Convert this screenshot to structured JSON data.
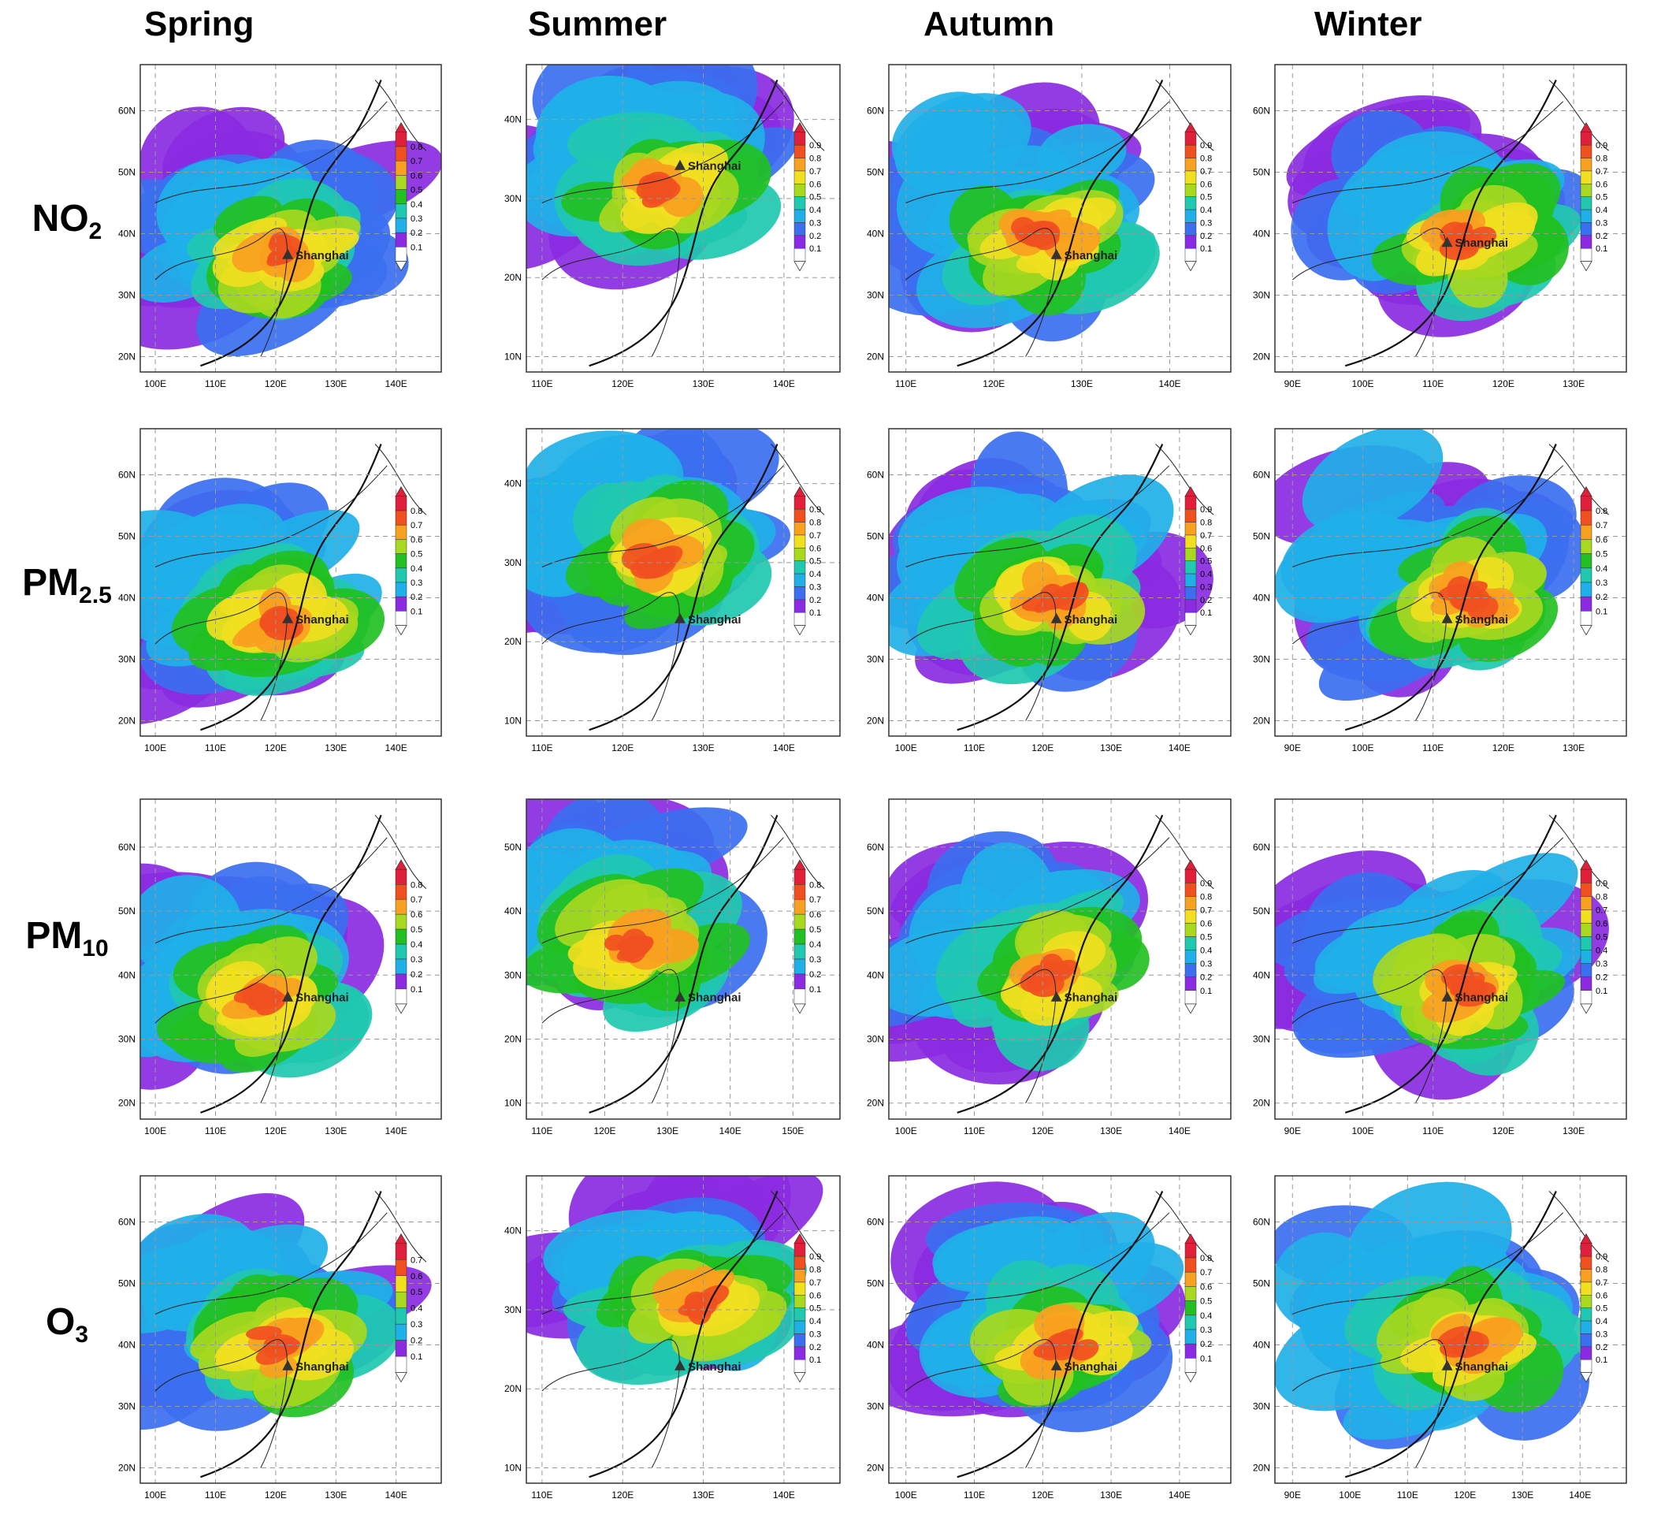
{
  "seasons": [
    "Spring",
    "Summer",
    "Autumn",
    "Winter"
  ],
  "pollutants": [
    {
      "base": "NO",
      "sub": "2"
    },
    {
      "base": "PM",
      "sub": "2.5"
    },
    {
      "base": "PM",
      "sub": "10"
    },
    {
      "base": "O",
      "sub": "3"
    }
  ],
  "site_label": "Shanghai",
  "colorbar_colors": [
    "#ffffff",
    "#8a2be2",
    "#3b6ff0",
    "#1fb0e8",
    "#20c8b0",
    "#22c022",
    "#a8d820",
    "#f0e020",
    "#f8a020",
    "#f05020",
    "#e0203a"
  ],
  "panels": [
    [
      {
        "lon": [
          "100E",
          "110E",
          "120E",
          "130E",
          "140E"
        ],
        "lat": [
          "20N",
          "30N",
          "40N",
          "50N",
          "60N"
        ],
        "cbar": [
          "0.1",
          "0.2",
          "0.3",
          "0.4",
          "0.5",
          "0.6",
          "0.7",
          "0.8"
        ]
      },
      {
        "lon": [
          "110E",
          "120E",
          "130E",
          "140E"
        ],
        "lat": [
          "10N",
          "20N",
          "30N",
          "40N"
        ],
        "cbar": [
          "0.1",
          "0.2",
          "0.3",
          "0.4",
          "0.5",
          "0.6",
          "0.7",
          "0.8",
          "0.9"
        ]
      },
      {
        "lon": [
          "110E",
          "120E",
          "130E",
          "140E"
        ],
        "lat": [
          "20N",
          "30N",
          "40N",
          "50N",
          "60N"
        ],
        "cbar": [
          "0.1",
          "0.2",
          "0.3",
          "0.4",
          "0.5",
          "0.6",
          "0.7",
          "0.8",
          "0.9"
        ]
      },
      {
        "lon": [
          "90E",
          "100E",
          "110E",
          "120E",
          "130E"
        ],
        "lat": [
          "20N",
          "30N",
          "40N",
          "50N",
          "60N"
        ],
        "cbar": [
          "0.1",
          "0.2",
          "0.3",
          "0.4",
          "0.5",
          "0.6",
          "0.7",
          "0.8",
          "0.9"
        ]
      }
    ],
    [
      {
        "lon": [
          "100E",
          "110E",
          "120E",
          "130E",
          "140E"
        ],
        "lat": [
          "20N",
          "30N",
          "40N",
          "50N",
          "60N"
        ],
        "cbar": [
          "0.1",
          "0.2",
          "0.3",
          "0.4",
          "0.5",
          "0.6",
          "0.7",
          "0.8"
        ]
      },
      {
        "lon": [
          "110E",
          "120E",
          "130E",
          "140E"
        ],
        "lat": [
          "10N",
          "20N",
          "30N",
          "40N"
        ],
        "cbar": [
          "0.1",
          "0.2",
          "0.3",
          "0.4",
          "0.5",
          "0.6",
          "0.7",
          "0.8",
          "0.9"
        ]
      },
      {
        "lon": [
          "100E",
          "110E",
          "120E",
          "130E",
          "140E"
        ],
        "lat": [
          "20N",
          "30N",
          "40N",
          "50N",
          "60N"
        ],
        "cbar": [
          "0.1",
          "0.2",
          "0.3",
          "0.4",
          "0.5",
          "0.6",
          "0.7",
          "0.8",
          "0.9"
        ]
      },
      {
        "lon": [
          "90E",
          "100E",
          "110E",
          "120E",
          "130E"
        ],
        "lat": [
          "20N",
          "30N",
          "40N",
          "50N",
          "60N"
        ],
        "cbar": [
          "0.1",
          "0.2",
          "0.3",
          "0.4",
          "0.5",
          "0.6",
          "0.7",
          "0.8"
        ]
      }
    ],
    [
      {
        "lon": [
          "100E",
          "110E",
          "120E",
          "130E",
          "140E"
        ],
        "lat": [
          "20N",
          "30N",
          "40N",
          "50N",
          "60N"
        ],
        "cbar": [
          "0.1",
          "0.2",
          "0.3",
          "0.4",
          "0.5",
          "0.6",
          "0.7",
          "0.8"
        ]
      },
      {
        "lon": [
          "110E",
          "120E",
          "130E",
          "140E",
          "150E"
        ],
        "lat": [
          "10N",
          "20N",
          "30N",
          "40N",
          "50N"
        ],
        "cbar": [
          "0.1",
          "0.2",
          "0.3",
          "0.4",
          "0.5",
          "0.6",
          "0.7",
          "0.8"
        ]
      },
      {
        "lon": [
          "100E",
          "110E",
          "120E",
          "130E",
          "140E"
        ],
        "lat": [
          "20N",
          "30N",
          "40N",
          "50N",
          "60N"
        ],
        "cbar": [
          "0.1",
          "0.2",
          "0.3",
          "0.4",
          "0.5",
          "0.6",
          "0.7",
          "0.8",
          "0.9"
        ]
      },
      {
        "lon": [
          "90E",
          "100E",
          "110E",
          "120E",
          "130E"
        ],
        "lat": [
          "20N",
          "30N",
          "40N",
          "50N",
          "60N"
        ],
        "cbar": [
          "0.1",
          "0.2",
          "0.3",
          "0.4",
          "0.5",
          "0.6",
          "0.7",
          "0.8",
          "0.9"
        ]
      }
    ],
    [
      {
        "lon": [
          "100E",
          "110E",
          "120E",
          "130E",
          "140E"
        ],
        "lat": [
          "20N",
          "30N",
          "40N",
          "50N",
          "60N"
        ],
        "cbar": [
          "0.1",
          "0.2",
          "0.3",
          "0.4",
          "0.5",
          "0.6",
          "0.7"
        ]
      },
      {
        "lon": [
          "110E",
          "120E",
          "130E",
          "140E"
        ],
        "lat": [
          "10N",
          "20N",
          "30N",
          "40N"
        ],
        "cbar": [
          "0.1",
          "0.2",
          "0.3",
          "0.4",
          "0.5",
          "0.6",
          "0.7",
          "0.8",
          "0.9"
        ]
      },
      {
        "lon": [
          "100E",
          "110E",
          "120E",
          "130E",
          "140E"
        ],
        "lat": [
          "20N",
          "30N",
          "40N",
          "50N",
          "60N"
        ],
        "cbar": [
          "0.1",
          "0.2",
          "0.3",
          "0.4",
          "0.5",
          "0.6",
          "0.7",
          "0.8"
        ]
      },
      {
        "lon": [
          "90E",
          "100E",
          "110E",
          "120E",
          "130E",
          "140E"
        ],
        "lat": [
          "20N",
          "30N",
          "40N",
          "50N",
          "60N"
        ],
        "cbar": [
          "0.1",
          "0.2",
          "0.3",
          "0.4",
          "0.5",
          "0.6",
          "0.7",
          "0.8",
          "0.9"
        ]
      }
    ]
  ]
}
